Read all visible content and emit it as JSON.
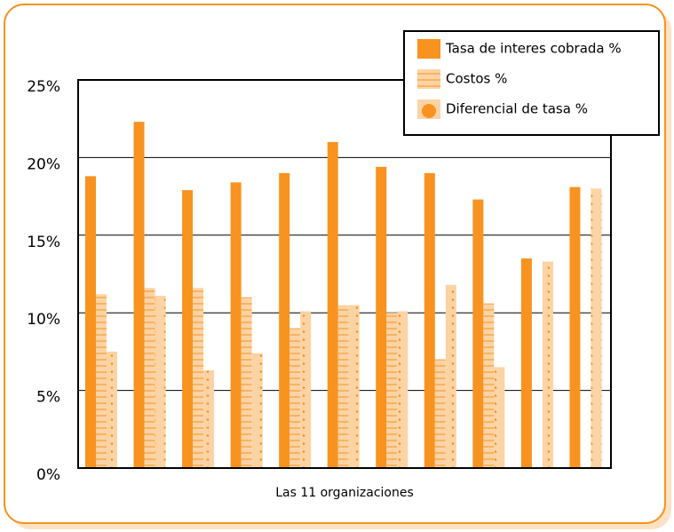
{
  "chart_data": {
    "type": "bar",
    "xlabel": "Las 11 organizaciones",
    "categories": [
      null,
      null,
      null,
      null,
      null,
      null,
      null,
      null,
      null,
      null,
      null
    ],
    "series": [
      {
        "name": "Tasa de interes cobrada %",
        "color": "#f7931e",
        "values": [
          18.8,
          22.3,
          17.9,
          18.4,
          19.0,
          21.0,
          19.4,
          19.0,
          17.3,
          13.5,
          18.1
        ]
      },
      {
        "name": "Costos %",
        "color": "#fcd3a4",
        "values": [
          11.2,
          11.6,
          11.6,
          11.0,
          9.0,
          10.5,
          10.0,
          7.0,
          10.6,
          null,
          null
        ]
      },
      {
        "name": "Diferencial de tasa %",
        "color": "#fcd3a4",
        "values": [
          7.5,
          11.1,
          6.3,
          7.4,
          10.1,
          10.5,
          10.1,
          11.8,
          6.5,
          13.3,
          18.0
        ]
      }
    ],
    "ylim": [
      0,
      25
    ],
    "yticks": [
      {
        "value": 0,
        "label": "0%"
      },
      {
        "value": 5,
        "label": "5%"
      },
      {
        "value": 10,
        "label": "10%"
      },
      {
        "value": 15,
        "label": "15%"
      },
      {
        "value": 20,
        "label": "20%"
      },
      {
        "value": 25,
        "label": "25%"
      }
    ],
    "grid": true,
    "legend": "top-right"
  }
}
